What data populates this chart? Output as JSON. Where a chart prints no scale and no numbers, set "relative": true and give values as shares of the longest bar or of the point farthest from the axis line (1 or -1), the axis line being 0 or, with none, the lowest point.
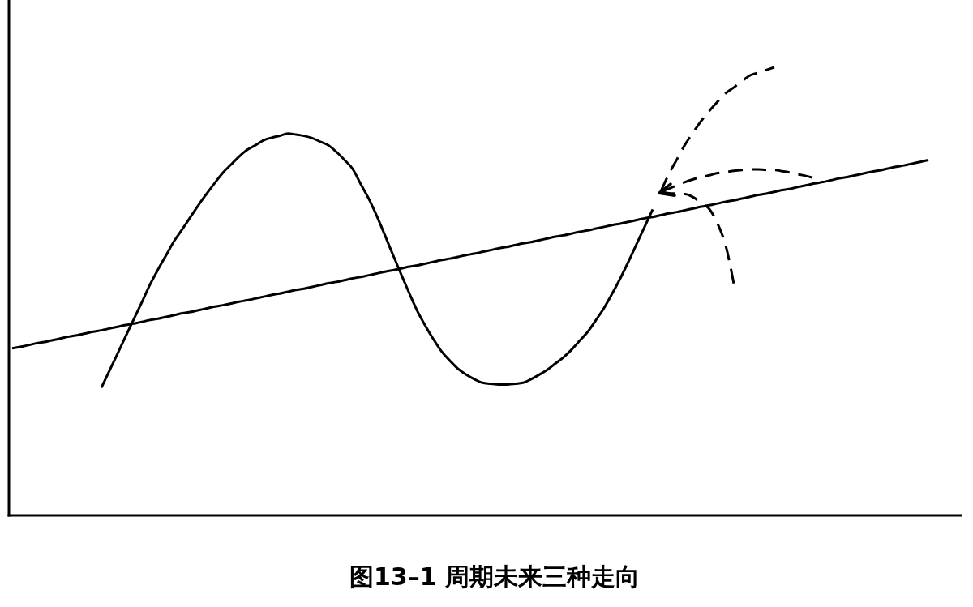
{
  "chart_data": {
    "type": "line",
    "title": "图13–1 周期未来三种走向",
    "relative": true,
    "categories": [
      null,
      null,
      null,
      null,
      null,
      null,
      null,
      null,
      null,
      null,
      null,
      null,
      null,
      null,
      null,
      null,
      null,
      null,
      null,
      null,
      null,
      null,
      null,
      null,
      null,
      null,
      null,
      null,
      null,
      null,
      null,
      null,
      null,
      null,
      null,
      null,
      null,
      null,
      null,
      null,
      null,
      null,
      null,
      null,
      null,
      null,
      null,
      null,
      null,
      null,
      null,
      null,
      null,
      null,
      null,
      null,
      null,
      null,
      null,
      null,
      null,
      null,
      null,
      null,
      null,
      null,
      null,
      null,
      null,
      null,
      null,
      null,
      null,
      null,
      null,
      null,
      null,
      null,
      null,
      null,
      null,
      null,
      null,
      null,
      null,
      null,
      null,
      null,
      null,
      null,
      null,
      null,
      null,
      null,
      null,
      null,
      null,
      null,
      null,
      null,
      null,
      null,
      null,
      null,
      null,
      null,
      null,
      null,
      null,
      null,
      null,
      null,
      null,
      null
    ],
    "series": [
      {
        "color": "#000000",
        "line_style": "solid",
        "values": [
          0.373,
          0.376,
          0.38,
          0.384,
          0.387,
          0.391,
          0.395,
          0.399,
          0.402,
          0.406,
          0.41,
          0.413,
          0.417,
          0.421,
          0.425,
          0.428,
          0.432,
          0.436,
          0.439,
          0.443,
          0.447,
          0.451,
          0.454,
          0.458,
          0.462,
          0.466,
          0.469,
          0.473,
          0.477,
          0.48,
          0.484,
          0.488,
          0.492,
          0.495,
          0.499,
          0.503,
          0.506,
          0.51,
          0.514,
          0.518,
          0.521,
          0.525,
          0.529,
          0.532,
          0.536,
          0.54,
          0.544,
          0.547,
          0.551,
          0.555,
          0.558,
          0.562,
          0.566,
          0.57,
          0.573,
          0.577,
          0.581,
          0.584,
          0.588,
          0.592,
          0.596,
          0.599,
          0.603,
          0.607,
          0.61,
          0.614,
          0.618,
          0.622,
          0.625,
          0.629,
          0.633,
          0.636,
          0.64,
          0.644,
          0.648,
          0.651,
          0.655,
          0.659,
          0.663,
          0.666,
          0.67,
          0.674,
          0.677,
          0.681,
          0.685,
          0.689,
          0.692,
          0.696,
          0.7,
          0.703,
          0.707,
          0.711,
          0.715,
          0.718,
          0.722,
          0.726,
          0.729,
          0.733,
          0.737,
          0.741,
          0.744,
          0.748,
          0.752,
          0.755,
          0.759,
          0.763,
          0.767,
          0.77,
          0.774,
          0.778,
          0.781,
          0.785,
          0.789,
          0.793
        ]
      },
      {
        "color": "#000000",
        "line_style": "solid",
        "values": [
          null,
          null,
          null,
          null,
          null,
          null,
          null,
          null,
          null,
          null,
          null,
          0.285,
          0.323,
          0.361,
          0.4,
          0.438,
          0.476,
          0.515,
          0.549,
          0.581,
          0.613,
          0.639,
          0.666,
          0.693,
          0.718,
          0.742,
          0.765,
          0.783,
          0.801,
          0.816,
          0.826,
          0.837,
          0.843,
          0.847,
          0.852,
          0.85,
          0.847,
          0.842,
          0.834,
          0.826,
          0.811,
          0.793,
          0.773,
          0.739,
          0.706,
          0.667,
          0.624,
          0.58,
          0.537,
          0.495,
          0.455,
          0.422,
          0.392,
          0.365,
          0.345,
          0.327,
          0.314,
          0.304,
          0.296,
          0.294,
          0.292,
          0.292,
          0.294,
          0.296,
          0.304,
          0.314,
          0.325,
          0.339,
          0.353,
          0.37,
          0.39,
          0.41,
          0.436,
          0.463,
          0.495,
          0.529,
          0.566,
          0.605,
          0.644,
          0.683,
          null,
          null,
          null,
          null,
          null,
          null,
          null,
          null,
          null,
          null,
          null,
          null,
          null,
          null,
          null,
          null,
          null,
          null,
          null,
          null,
          null,
          null,
          null,
          null,
          null,
          null,
          null,
          null,
          null,
          null,
          null,
          null,
          null,
          null
        ]
      },
      {
        "color": "#000000",
        "line_style": "dashed",
        "values": [
          null,
          null,
          null,
          null,
          null,
          null,
          null,
          null,
          null,
          null,
          null,
          null,
          null,
          null,
          null,
          null,
          null,
          null,
          null,
          null,
          null,
          null,
          null,
          null,
          null,
          null,
          null,
          null,
          null,
          null,
          null,
          null,
          null,
          null,
          null,
          null,
          null,
          null,
          null,
          null,
          null,
          null,
          null,
          null,
          null,
          null,
          null,
          null,
          null,
          null,
          null,
          null,
          null,
          null,
          null,
          null,
          null,
          null,
          null,
          null,
          null,
          null,
          null,
          null,
          null,
          null,
          null,
          null,
          null,
          null,
          null,
          null,
          null,
          null,
          null,
          null,
          null,
          null,
          null,
          null,
          0.723,
          0.762,
          0.795,
          0.828,
          0.855,
          0.881,
          0.903,
          0.923,
          0.942,
          0.955,
          0.969,
          0.982,
          0.988,
          0.994,
          1,
          null,
          null,
          null,
          null,
          null,
          null,
          null,
          null,
          null,
          null,
          null,
          null,
          null,
          null,
          null,
          null,
          null,
          null,
          null
        ]
      },
      {
        "color": "#000000",
        "line_style": "dashed",
        "values": [
          null,
          null,
          null,
          null,
          null,
          null,
          null,
          null,
          null,
          null,
          null,
          null,
          null,
          null,
          null,
          null,
          null,
          null,
          null,
          null,
          null,
          null,
          null,
          null,
          null,
          null,
          null,
          null,
          null,
          null,
          null,
          null,
          null,
          null,
          null,
          null,
          null,
          null,
          null,
          null,
          null,
          null,
          null,
          null,
          null,
          null,
          null,
          null,
          null,
          null,
          null,
          null,
          null,
          null,
          null,
          null,
          null,
          null,
          null,
          null,
          null,
          null,
          null,
          null,
          null,
          null,
          null,
          null,
          null,
          null,
          null,
          null,
          null,
          null,
          null,
          null,
          null,
          null,
          null,
          null,
          0.723,
          0.729,
          0.737,
          0.744,
          0.75,
          0.755,
          0.759,
          0.764,
          0.766,
          0.769,
          0.771,
          0.772,
          0.772,
          0.771,
          0.771,
          0.768,
          0.765,
          0.761,
          0.757,
          0.752,
          null,
          null,
          null,
          null,
          null,
          null,
          null,
          null,
          null,
          null,
          null,
          null,
          null,
          null
        ]
      },
      {
        "color": "#000000",
        "line_style": "dashed",
        "values": [
          null,
          null,
          null,
          null,
          null,
          null,
          null,
          null,
          null,
          null,
          null,
          null,
          null,
          null,
          null,
          null,
          null,
          null,
          null,
          null,
          null,
          null,
          null,
          null,
          null,
          null,
          null,
          null,
          null,
          null,
          null,
          null,
          null,
          null,
          null,
          null,
          null,
          null,
          null,
          null,
          null,
          null,
          null,
          null,
          null,
          null,
          null,
          null,
          null,
          null,
          null,
          null,
          null,
          null,
          null,
          null,
          null,
          null,
          null,
          null,
          null,
          null,
          null,
          null,
          null,
          null,
          null,
          null,
          null,
          null,
          null,
          null,
          null,
          null,
          null,
          null,
          null,
          null,
          null,
          null,
          0.723,
          0.719,
          0.718,
          0.717,
          0.71,
          0.697,
          0.683,
          0.651,
          0.602,
          0.517,
          null,
          null,
          null,
          null,
          null,
          null,
          null,
          null,
          null,
          null,
          null,
          null,
          null,
          null,
          null,
          null,
          null,
          null,
          null,
          null,
          null,
          null,
          null,
          null
        ]
      }
    ]
  }
}
